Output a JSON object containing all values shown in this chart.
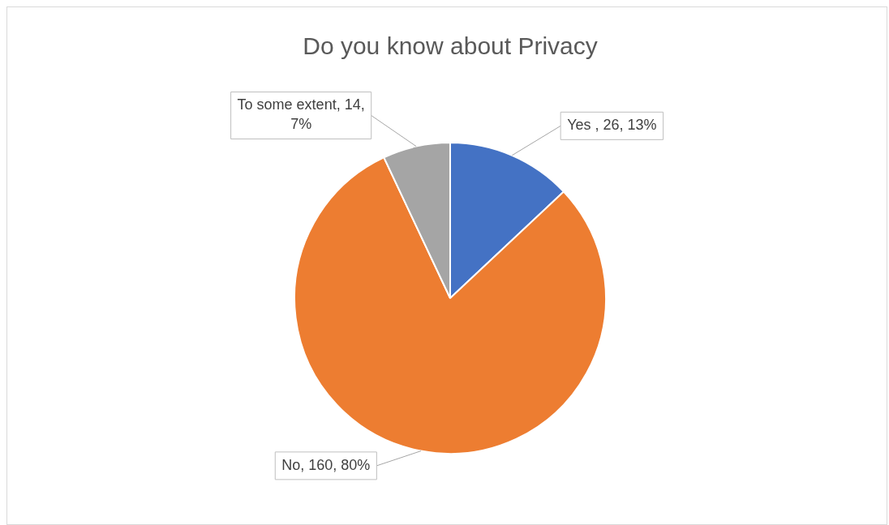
{
  "chart_data": {
    "type": "pie",
    "title": "Do you know about Privacy",
    "categories": [
      "Yes ",
      "No",
      "To some extent"
    ],
    "values": [
      26,
      160,
      14
    ],
    "colors": [
      "#4472c4",
      "#ed7d31",
      "#a5a5a5"
    ],
    "value_labels": [
      "26, 13%",
      "160, 80%",
      "14, 7%"
    ],
    "legend": false
  }
}
